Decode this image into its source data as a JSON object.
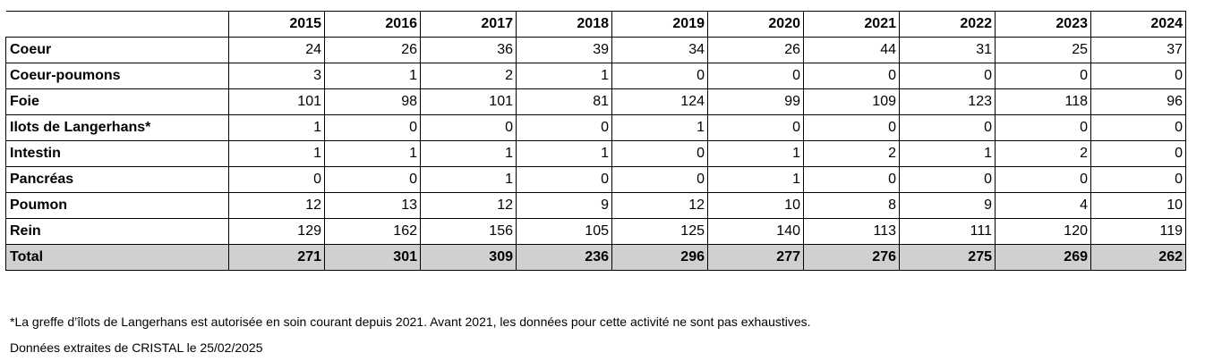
{
  "chart_data": {
    "type": "table",
    "columns": [
      "2015",
      "2016",
      "2017",
      "2018",
      "2019",
      "2020",
      "2021",
      "2022",
      "2023",
      "2024"
    ],
    "rows": [
      {
        "label": "Coeur",
        "values": [
          24,
          26,
          36,
          39,
          34,
          26,
          44,
          31,
          25,
          37
        ]
      },
      {
        "label": "Coeur-poumons",
        "values": [
          3,
          1,
          2,
          1,
          0,
          0,
          0,
          0,
          0,
          0
        ]
      },
      {
        "label": "Foie",
        "values": [
          101,
          98,
          101,
          81,
          124,
          99,
          109,
          123,
          118,
          96
        ]
      },
      {
        "label": "Ilots de Langerhans*",
        "values": [
          1,
          0,
          0,
          0,
          1,
          0,
          0,
          0,
          0,
          0
        ]
      },
      {
        "label": "Intestin",
        "values": [
          1,
          1,
          1,
          1,
          0,
          1,
          2,
          1,
          2,
          0
        ]
      },
      {
        "label": "Pancréas",
        "values": [
          0,
          0,
          1,
          0,
          0,
          1,
          0,
          0,
          0,
          0
        ]
      },
      {
        "label": "Poumon",
        "values": [
          12,
          13,
          12,
          9,
          12,
          10,
          8,
          9,
          4,
          10
        ]
      },
      {
        "label": "Rein",
        "values": [
          129,
          162,
          156,
          105,
          125,
          140,
          113,
          111,
          120,
          119
        ]
      }
    ],
    "total": {
      "label": "Total",
      "values": [
        271,
        301,
        309,
        236,
        296,
        277,
        276,
        275,
        269,
        262
      ]
    },
    "total_row_color": "#d0d0d0"
  },
  "notes": {
    "footnote": "*La greffe d’îlots de Langerhans est autorisée en soin courant depuis 2021. Avant 2021, les données pour cette activité ne sont pas exhaustives.",
    "source": "Données extraites de CRISTAL le 25/02/2025"
  }
}
